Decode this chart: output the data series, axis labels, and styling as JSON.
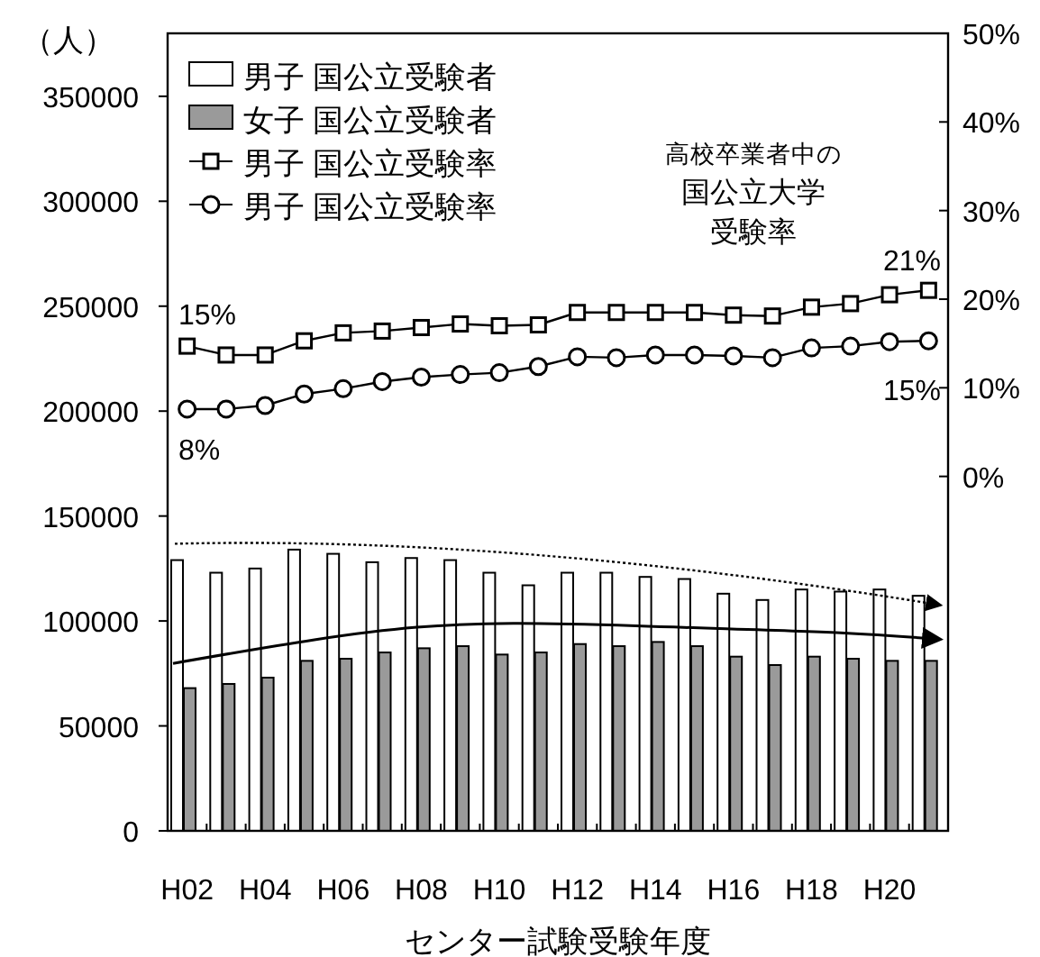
{
  "chart_data": {
    "type": "bar",
    "categories": [
      "H02",
      null,
      "H04",
      null,
      "H06",
      null,
      "H08",
      null,
      "H10",
      null,
      "H12",
      null,
      "H14",
      null,
      "H16",
      null,
      "H18",
      null,
      "H20",
      null
    ],
    "series": [
      {
        "name": "男子 国公立受験者",
        "color": "#ffffff",
        "values": [
          129000,
          123000,
          125000,
          134000,
          132000,
          128000,
          130000,
          129000,
          123000,
          117000,
          123000,
          123000,
          121000,
          120000,
          113000,
          110000,
          115000,
          114000,
          115000,
          112000
        ]
      },
      {
        "name": "女子 国公立受験者",
        "color": "#9a9a9a",
        "values": [
          68000,
          70000,
          73000,
          81000,
          82000,
          85000,
          87000,
          88000,
          84000,
          85000,
          89000,
          88000,
          90000,
          88000,
          83000,
          79000,
          83000,
          82000,
          81000,
          81000
        ]
      },
      {
        "name": "男子 国公立受験率",
        "type": "line",
        "axis": "y2",
        "marker": "square",
        "color": "#000000",
        "values": [
          14.7,
          13.7,
          13.7,
          15.3,
          16.2,
          16.4,
          16.8,
          17.2,
          17.0,
          17.1,
          18.5,
          18.5,
          18.5,
          18.5,
          18.2,
          18.1,
          19.1,
          19.5,
          20.5,
          21.0
        ]
      },
      {
        "name": "男子 国公立受験率",
        "type": "line",
        "axis": "y2",
        "marker": "circle",
        "color": "#000000",
        "values": [
          7.6,
          7.6,
          8.0,
          9.3,
          9.9,
          10.7,
          11.2,
          11.5,
          11.7,
          12.4,
          13.5,
          13.4,
          13.7,
          13.7,
          13.6,
          13.4,
          14.5,
          14.7,
          15.2,
          15.3
        ]
      }
    ],
    "xlabel": "センター試験受験年度",
    "ylabel": "（人）",
    "ylim": [
      0,
      380000
    ],
    "yticks": [
      0,
      50000,
      100000,
      150000,
      200000,
      250000,
      300000,
      350000
    ],
    "y2lim": [
      -40,
      50
    ],
    "y2ticks": [
      {
        "value": 0,
        "label": "0%"
      },
      {
        "value": 10,
        "label": "10%"
      },
      {
        "value": 20,
        "label": "20%"
      },
      {
        "value": 30,
        "label": "30%"
      },
      {
        "value": 40,
        "label": "40%"
      },
      {
        "value": 50,
        "label": "50%"
      }
    ],
    "annotations": [
      "高校卒業者中の",
      "国公立大学",
      "受験率",
      "15%",
      "8%",
      "21%",
      "15%"
    ],
    "legend": "top left",
    "grid": false
  }
}
